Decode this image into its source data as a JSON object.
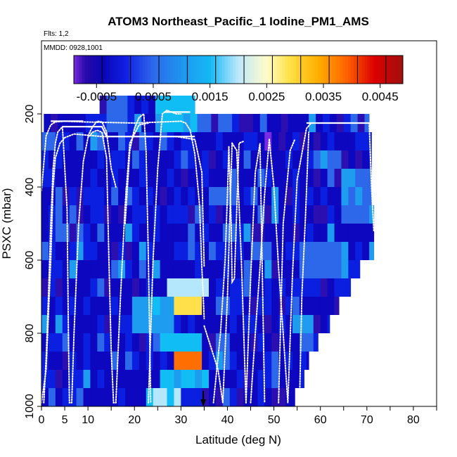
{
  "chart_data": {
    "type": "heatmap",
    "title": "ATOM3 Northeast_Pacific_1 Iodine_PM1_AMS",
    "annotations": {
      "flights": "Flts: 1,2",
      "dates": "MMDD: 0928,1001"
    },
    "xlabel": "Latitude (deg N)",
    "ylabel": "PSXC (mbar)",
    "xlim": [
      0,
      85
    ],
    "ylim": [
      1000,
      0
    ],
    "x_major_ticks": [
      0,
      5,
      10,
      20,
      30,
      40,
      50,
      60,
      70,
      80
    ],
    "x_major_tick_labels": [
      "0",
      "5",
      "10",
      "20",
      "30",
      "40",
      "50",
      "60",
      "70",
      "80"
    ],
    "x_minor_ticks": [
      0,
      5,
      10,
      15,
      20,
      25,
      30,
      35,
      40,
      45,
      50,
      55,
      60,
      65,
      70,
      75,
      80,
      85
    ],
    "y_ticks": [
      200,
      400,
      600,
      800,
      1000
    ],
    "y_tick_labels": [
      "200",
      "400",
      "600",
      "800",
      "1000"
    ],
    "colorbar": {
      "range": [
        -0.0009,
        0.0049
      ],
      "tick_values": [
        -0.0005,
        0.0005,
        0.0015,
        0.0025,
        0.0035,
        0.0045
      ],
      "tick_labels": [
        "-0.0005",
        "0.0005",
        "0.0015",
        "0.0025",
        "0.0035",
        "0.0045"
      ],
      "color_stops": [
        "#7b2be2",
        "#2b0fb0",
        "#0d07c0",
        "#0a1fe0",
        "#2d68ea",
        "#1e9df0",
        "#10bdf5",
        "#b4e6fc",
        "#fffcc8",
        "#ffe04a",
        "#ffb400",
        "#ff6e00",
        "#d80000",
        "#a80c0c"
      ],
      "bounds": [
        -0.0009,
        -0.0005,
        0.0,
        0.0005,
        0.001,
        0.0013,
        0.0015,
        0.002,
        0.0025,
        0.003,
        0.0035,
        0.004,
        0.0045,
        0.0049
      ]
    },
    "pressure_levels": [
      175,
      225,
      275,
      325,
      375,
      425,
      475,
      525,
      575,
      625,
      675,
      725,
      775,
      825,
      875,
      925,
      975
    ],
    "row_latitude_extent": [
      [
        12.5,
        33.0
      ],
      [
        0.5,
        70.5
      ],
      [
        0.0,
        71.0
      ],
      [
        0.0,
        71.0
      ],
      [
        0.0,
        71.0
      ],
      [
        0.0,
        71.0
      ],
      [
        0.0,
        71.5
      ],
      [
        0.0,
        71.5
      ],
      [
        0.0,
        71.5
      ],
      [
        0.0,
        68.5
      ],
      [
        0.0,
        66.5
      ],
      [
        0.0,
        64.0
      ],
      [
        0.0,
        62.0
      ],
      [
        0.0,
        59.5
      ],
      [
        0.0,
        57.5
      ],
      [
        0.0,
        56.5
      ],
      [
        0.0,
        54.5
      ]
    ],
    "value_features": [
      {
        "lat": [
          24.0,
          33.0
        ],
        "p": [
          150,
          250
        ],
        "value": 0.0016
      },
      {
        "lat": [
          14.0,
          20.0
        ],
        "p": [
          150,
          250
        ],
        "value": 0.0011
      },
      {
        "lat": [
          48.0,
          49.0
        ],
        "p": [
          250,
          300
        ],
        "value": -0.0008
      },
      {
        "lat": [
          64.0,
          71.5
        ],
        "p": [
          350,
          500
        ],
        "value": 0.0013
      },
      {
        "lat": [
          55.0,
          66.0
        ],
        "p": [
          550,
          650
        ],
        "value": 0.0012
      },
      {
        "lat": [
          27.0,
          35.5
        ],
        "p": [
          650,
          700
        ],
        "value": 0.0022
      },
      {
        "lat": [
          29.0,
          35.0
        ],
        "p": [
          700,
          750
        ],
        "value": 0.0032
      },
      {
        "lat": [
          20.0,
          28.0
        ],
        "p": [
          700,
          800
        ],
        "value": 0.0014
      },
      {
        "lat": [
          26.0,
          35.0
        ],
        "p": [
          800,
          850
        ],
        "value": 0.0018
      },
      {
        "lat": [
          29.0,
          35.0
        ],
        "p": [
          850,
          900
        ],
        "value": 0.0042
      },
      {
        "lat": [
          26.0,
          36.0
        ],
        "p": [
          900,
          950
        ],
        "value": 0.0016
      },
      {
        "lat": [
          22.0,
          30.0
        ],
        "p": [
          950,
          1000
        ],
        "value": 0.0021
      },
      {
        "lat": [
          37.0,
          41.0
        ],
        "p": [
          800,
          900
        ],
        "value": 0.0012
      },
      {
        "lat": [
          54.0,
          58.0
        ],
        "p": [
          750,
          800
        ],
        "value": 0.0013
      },
      {
        "lat": [
          5.0,
          10.0
        ],
        "p": [
          300,
          400
        ],
        "value": 0.0003
      }
    ],
    "flight_tracks": [
      {
        "lat": [
          0,
          1,
          2,
          3,
          5,
          9,
          20,
          30,
          31,
          32,
          33,
          34.0,
          34.5,
          34.8,
          35.0
        ],
        "p": [
          410,
          260,
          230,
          222,
          220,
          222,
          225,
          220,
          225,
          245,
          310,
          450,
          620,
          700,
          760
        ]
      },
      {
        "lat": [
          0,
          1,
          2,
          2.5,
          3,
          4,
          5,
          7,
          13,
          17,
          20,
          23,
          29,
          33,
          34.5,
          35.0
        ],
        "p": [
          990,
          900,
          600,
          400,
          320,
          280,
          265,
          255,
          262,
          262,
          262,
          262,
          262,
          270,
          360,
          620
        ]
      },
      {
        "lat": [
          0.5,
          1,
          1.5,
          2,
          2.5,
          3,
          3.5,
          4.5
        ],
        "p": [
          990,
          870,
          700,
          500,
          350,
          280,
          250,
          235
        ]
      },
      {
        "lat": [
          4.5,
          5.5,
          5.8,
          6.0,
          6.5,
          7,
          8,
          9,
          10,
          11,
          12,
          13,
          14
        ],
        "p": [
          235,
          460,
          800,
          990,
          990,
          800,
          500,
          330,
          265,
          250,
          245,
          250,
          320
        ]
      },
      {
        "lat": [
          14,
          14.5,
          15,
          15.5,
          16
        ],
        "p": [
          320,
          600,
          850,
          990,
          990
        ]
      },
      {
        "lat": [
          16,
          17,
          18,
          19,
          21,
          23
        ],
        "p": [
          990,
          700,
          450,
          280,
          230,
          225
        ]
      },
      {
        "lat": [
          10,
          11,
          12,
          13,
          14,
          15,
          16
        ],
        "p": [
          260,
          235,
          220,
          222,
          250,
          350,
          400
        ]
      },
      {
        "lat": [
          18,
          19,
          20,
          21,
          22,
          22.5,
          23,
          23.5
        ],
        "p": [
          500,
          300,
          240,
          210,
          200,
          300,
          600,
          990
        ]
      },
      {
        "lat": [
          23,
          24,
          25,
          26,
          27,
          28,
          29,
          30
        ],
        "p": [
          990,
          600,
          350,
          200,
          190,
          195,
          200,
          200
        ]
      },
      {
        "lat": [
          37.0,
          38.5,
          39.5,
          40.0,
          40.3
        ],
        "p": [
          990,
          800,
          600,
          420,
          290
        ]
      },
      {
        "lat": [
          40.3,
          40.8,
          41.0,
          41.5,
          42.5,
          43.5
        ],
        "p": [
          290,
          500,
          660,
          650,
          280,
          275
        ]
      },
      {
        "lat": [
          45.0,
          46.0,
          47.0,
          48.0,
          49.0
        ],
        "p": [
          990,
          800,
          620,
          420,
          270
        ]
      },
      {
        "lat": [
          49.0,
          50.0,
          51.0,
          52.0,
          53.0,
          54.0,
          55.0
        ],
        "p": [
          270,
          400,
          620,
          800,
          990,
          640,
          380
        ]
      },
      {
        "lat": [
          55.0,
          57.0,
          58.0,
          59.0,
          70.5
        ],
        "p": [
          380,
          240,
          225,
          225,
          225
        ]
      },
      {
        "lat": [
          35.0,
          38.0,
          39.0,
          40.0,
          41.0
        ],
        "p": [
          780,
          900,
          990,
          700,
          280
        ]
      },
      {
        "lat": [
          41.0,
          42.0,
          43.0,
          44.0
        ],
        "p": [
          280,
          300,
          600,
          990
        ]
      },
      {
        "lat": [
          44.0,
          45.0,
          46.0,
          47.0,
          48.0
        ],
        "p": [
          990,
          650,
          360,
          280,
          990
        ]
      },
      {
        "lat": [
          51.0,
          52.0,
          53.5,
          54.5
        ],
        "p": [
          990,
          500,
          300,
          270
        ]
      },
      {
        "lat": [
          55.5,
          56.0,
          56.8,
          57.5
        ],
        "p": [
          990,
          700,
          480,
          250
        ]
      },
      {
        "lat": [
          70.5,
          71.0,
          71.5
        ],
        "p": [
          225,
          400,
          520
        ]
      }
    ],
    "marker": {
      "lat": 34.8,
      "direction": "down"
    }
  }
}
